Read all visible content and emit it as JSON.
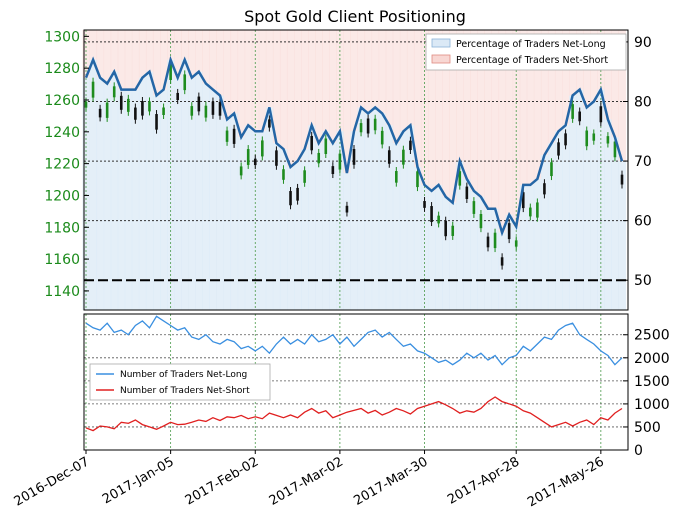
{
  "title": "Spot Gold Client Positioning",
  "colors": {
    "price_axis": "#1a8a1a",
    "up_candle": "#1e8c1e",
    "down_candle": "#111111",
    "ratio_line": "#2466a6",
    "net_long_fill": "#dbe9f6",
    "net_short_fill": "#f8d7d3",
    "traders_long": "#3a8fe0",
    "traders_short": "#e02020",
    "grid": "#4a9a4a"
  },
  "legend_top": {
    "long": "Percentage of Traders Net-Long",
    "short": "Percentage of Traders Net-Short"
  },
  "legend_bottom": {
    "long": "Number of Traders Net-Long",
    "short": "Number of Traders Net-Short"
  },
  "chart_data": [
    {
      "type": "line",
      "panel": "top",
      "title": "Spot Gold Client Positioning",
      "x_tick_labels": [
        "2016-Dec-07",
        "2017-Jan-05",
        "2017-Feb-02",
        "2017-Mar-02",
        "2017-Mar-30",
        "2017-Apr-28",
        "2017-May-26"
      ],
      "price_axis": {
        "side": "left",
        "ticks": [
          1140,
          1160,
          1180,
          1200,
          1220,
          1240,
          1260,
          1280,
          1300
        ],
        "ylim": [
          1128,
          1304
        ]
      },
      "ratio_axis": {
        "side": "right",
        "ticks": [
          50,
          60,
          70,
          80,
          90
        ],
        "ylim": [
          45,
          92
        ],
        "reference_line": 50
      },
      "series": [
        {
          "name": "Percentage of Traders Net-Long",
          "x": [
            "2016-12-07",
            "2016-12-09",
            "2016-12-12",
            "2016-12-14",
            "2016-12-16",
            "2016-12-19",
            "2016-12-21",
            "2016-12-23",
            "2016-12-26",
            "2016-12-28",
            "2016-12-30",
            "2017-01-02",
            "2017-01-04",
            "2017-01-06",
            "2017-01-09",
            "2017-01-11",
            "2017-01-13",
            "2017-01-16",
            "2017-01-18",
            "2017-01-20",
            "2017-01-23",
            "2017-01-25",
            "2017-01-27",
            "2017-01-30",
            "2017-02-01",
            "2017-02-03",
            "2017-02-06",
            "2017-02-08",
            "2017-02-10",
            "2017-02-13",
            "2017-02-15",
            "2017-02-17",
            "2017-02-20",
            "2017-02-22",
            "2017-02-24",
            "2017-02-27",
            "2017-03-01",
            "2017-03-03",
            "2017-03-06",
            "2017-03-08",
            "2017-03-10",
            "2017-03-13",
            "2017-03-15",
            "2017-03-17",
            "2017-03-20",
            "2017-03-22",
            "2017-03-24",
            "2017-03-27",
            "2017-03-29",
            "2017-03-31",
            "2017-04-03",
            "2017-04-05",
            "2017-04-07",
            "2017-04-10",
            "2017-04-12",
            "2017-04-14",
            "2017-04-17",
            "2017-04-19",
            "2017-04-21",
            "2017-04-24",
            "2017-04-26",
            "2017-04-28",
            "2017-05-01",
            "2017-05-03",
            "2017-05-05",
            "2017-05-08",
            "2017-05-10",
            "2017-05-12",
            "2017-05-15",
            "2017-05-17",
            "2017-05-19",
            "2017-05-22",
            "2017-05-24",
            "2017-05-26",
            "2017-05-29",
            "2017-05-31",
            "2017-06-02"
          ],
          "values": [
            84,
            87,
            84,
            83,
            85,
            82,
            82,
            82,
            84,
            85,
            81,
            82,
            87,
            84,
            87,
            84,
            85,
            83,
            82,
            81,
            77,
            78,
            74,
            76,
            75,
            75,
            79,
            73,
            72,
            69,
            70,
            72,
            76,
            73,
            75,
            73,
            75,
            68,
            75,
            79,
            78,
            79,
            78,
            76,
            73,
            75,
            76,
            69,
            66,
            65,
            66,
            64,
            63,
            70,
            67,
            65,
            64,
            62,
            62,
            58,
            61,
            59,
            66,
            66,
            67,
            71,
            73,
            75,
            76,
            81,
            82,
            79,
            80,
            82,
            77,
            74,
            70
          ]
        }
      ]
    },
    {
      "type": "line",
      "panel": "bottom",
      "x_tick_labels": [
        "2016-Dec-07",
        "2017-Jan-05",
        "2017-Feb-02",
        "2017-Mar-02",
        "2017-Mar-30",
        "2017-Apr-28",
        "2017-May-26"
      ],
      "yticks": [
        0,
        500,
        1000,
        1500,
        2000,
        2500
      ],
      "ylim": [
        0,
        2950
      ],
      "series": [
        {
          "name": "Number of Traders Net-Long",
          "values": [
            2750,
            2650,
            2600,
            2750,
            2550,
            2600,
            2500,
            2700,
            2800,
            2650,
            2900,
            2800,
            2700,
            2600,
            2650,
            2450,
            2400,
            2500,
            2350,
            2300,
            2400,
            2350,
            2200,
            2250,
            2150,
            2250,
            2100,
            2300,
            2450,
            2300,
            2400,
            2300,
            2500,
            2350,
            2400,
            2500,
            2300,
            2450,
            2250,
            2400,
            2550,
            2600,
            2450,
            2550,
            2400,
            2250,
            2300,
            2150,
            2100,
            2000,
            1900,
            1950,
            1850,
            1950,
            2100,
            2000,
            2100,
            1950,
            2050,
            1850,
            2000,
            2050,
            2250,
            2150,
            2300,
            2450,
            2400,
            2600,
            2700,
            2750,
            2500,
            2400,
            2300,
            2150,
            2050,
            1850,
            2000
          ]
        },
        {
          "name": "Number of Traders Net-Short",
          "values": [
            480,
            420,
            520,
            500,
            460,
            600,
            580,
            650,
            550,
            500,
            450,
            520,
            600,
            550,
            560,
            600,
            650,
            620,
            700,
            640,
            720,
            700,
            750,
            680,
            720,
            680,
            800,
            750,
            700,
            760,
            700,
            820,
            900,
            800,
            850,
            700,
            760,
            820,
            860,
            900,
            800,
            860,
            760,
            820,
            900,
            850,
            780,
            900,
            950,
            1000,
            1050,
            980,
            900,
            800,
            850,
            820,
            900,
            1050,
            1150,
            1050,
            1000,
            950,
            850,
            800,
            700,
            600,
            500,
            550,
            600,
            520,
            600,
            650,
            550,
            700,
            650,
            800,
            900
          ]
        }
      ]
    }
  ]
}
